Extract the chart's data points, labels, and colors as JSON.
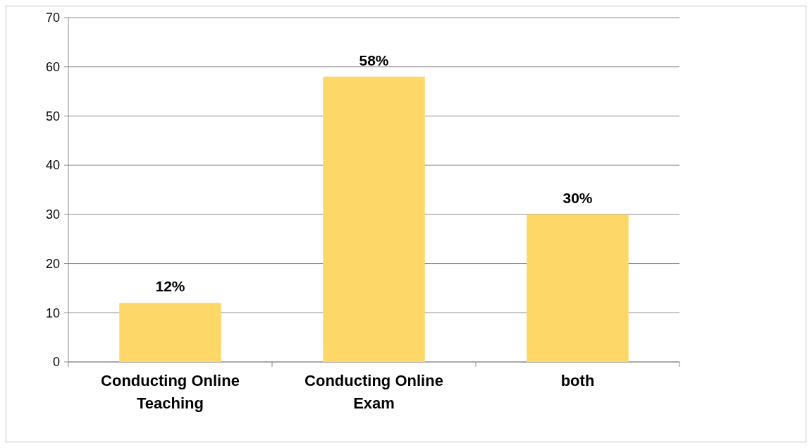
{
  "chart_data": {
    "type": "bar",
    "categories": [
      "Conducting Online Teaching",
      "Conducting Online Exam",
      "both"
    ],
    "values": [
      12,
      58,
      30
    ],
    "color": "#fdd868",
    "value_labels": [
      "12%",
      "58%",
      "30%"
    ],
    "ylim": [
      0,
      70
    ],
    "yticks": [
      0,
      10,
      20,
      30,
      40,
      50,
      60,
      70
    ],
    "grid": "y"
  }
}
